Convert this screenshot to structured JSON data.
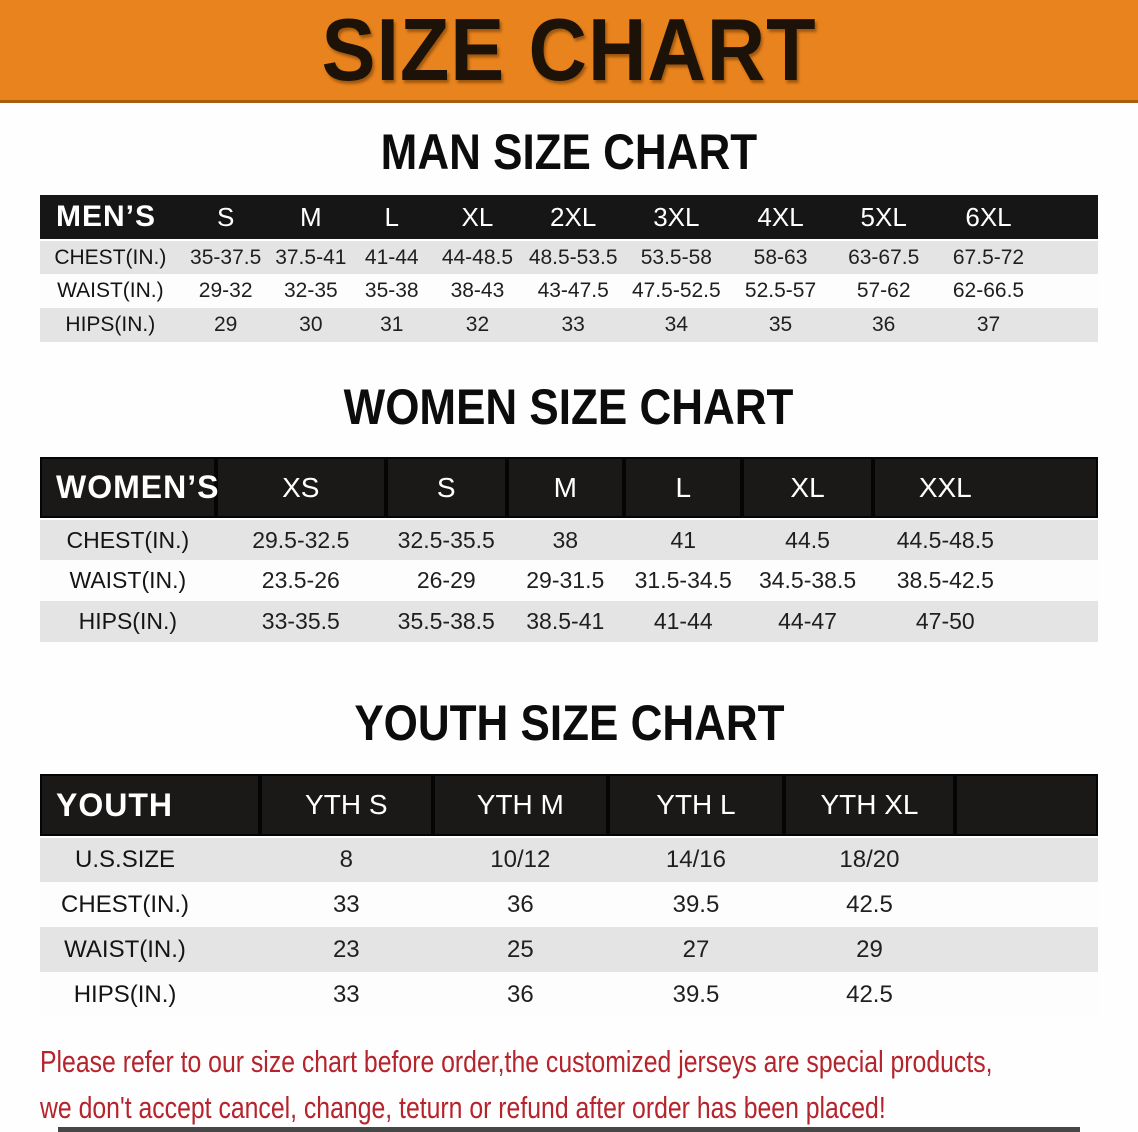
{
  "banner": {
    "title": "SIZE CHART"
  },
  "colors": {
    "page_bg": "#fefefe",
    "banner_bg": "#e8831d",
    "banner_text": "#1c1208",
    "bar_bg": "#161616",
    "bar_text": "#ffffff",
    "row_alt": "#e4e4e4",
    "row_white": "#fdfdfd",
    "heading_text": "#0c0c0c",
    "disclaimer_red": "#b5242c"
  },
  "sections": [
    {
      "heading": "MAN SIZE CHART",
      "header_label": "MEN’S",
      "columns": [
        "S",
        "M",
        "L",
        "XL",
        "2XL",
        "3XL",
        "4XL",
        "5XL",
        "6XL"
      ],
      "rows": [
        {
          "label": "CHEST(IN.)",
          "values": [
            "35-37.5",
            "37.5-41",
            "41-44",
            "44-48.5",
            "48.5-53.5",
            "53.5-58",
            "58-63",
            "63-67.5",
            "67.5-72"
          ]
        },
        {
          "label": "WAIST(IN.)",
          "values": [
            "29-32",
            "32-35",
            "35-38",
            "38-43",
            "43-47.5",
            "47.5-52.5",
            "52.5-57",
            "57-62",
            "62-66.5"
          ]
        },
        {
          "label": "HIPS(IN.)",
          "values": [
            "29",
            "30",
            "31",
            "32",
            "33",
            "34",
            "35",
            "36",
            "37"
          ]
        }
      ]
    },
    {
      "heading": "WOMEN SIZE CHART",
      "header_label": "WOMEN’S",
      "columns": [
        "XS",
        "S",
        "M",
        "L",
        "XL",
        "XXL"
      ],
      "rows": [
        {
          "label": "CHEST(IN.)",
          "values": [
            "29.5-32.5",
            "32.5-35.5",
            "38",
            "41",
            "44.5",
            "44.5-48.5"
          ]
        },
        {
          "label": "WAIST(IN.)",
          "values": [
            "23.5-26",
            "26-29",
            "29-31.5",
            "31.5-34.5",
            "34.5-38.5",
            "38.5-42.5"
          ]
        },
        {
          "label": "HIPS(IN.)",
          "values": [
            "33-35.5",
            "35.5-38.5",
            "38.5-41",
            "41-44",
            "44-47",
            "47-50"
          ]
        }
      ]
    },
    {
      "heading": "YOUTH SIZE CHART",
      "header_label": "YOUTH",
      "columns": [
        "YTH S",
        "YTH M",
        "YTH L",
        "YTH XL"
      ],
      "rows": [
        {
          "label": "U.S.SIZE",
          "values": [
            "8",
            "10/12",
            "14/16",
            "18/20"
          ]
        },
        {
          "label": "CHEST(IN.)",
          "values": [
            "33",
            "36",
            "39.5",
            "42.5"
          ]
        },
        {
          "label": "WAIST(IN.)",
          "values": [
            "23",
            "25",
            "27",
            "29"
          ]
        },
        {
          "label": "HIPS(IN.)",
          "values": [
            "33",
            "36",
            "39.5",
            "42.5"
          ]
        }
      ]
    }
  ],
  "disclaimer": {
    "line1": "Please refer to our size chart before order,the customized jerseys are special products,",
    "line2": "we don't accept cancel, change, teturn or refund after order has been placed!"
  }
}
